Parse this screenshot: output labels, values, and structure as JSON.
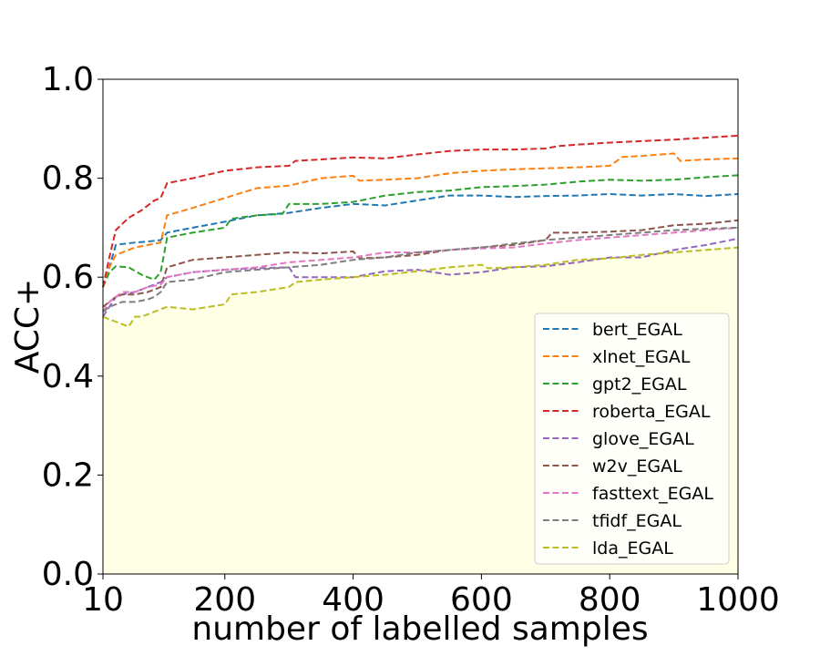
{
  "chart_data": {
    "type": "line",
    "title": "",
    "xlabel": "number of labelled samples",
    "ylabel": "ACC+",
    "xlim": [
      10,
      1000
    ],
    "ylim": [
      0.0,
      1.0
    ],
    "xticks": [
      10,
      200,
      400,
      600,
      800,
      1000
    ],
    "yticks": [
      0.0,
      0.2,
      0.4,
      0.6,
      0.8,
      1.0
    ],
    "xtick_labels": [
      "10",
      "200",
      "400",
      "600",
      "800",
      "1000"
    ],
    "ytick_labels": [
      "0.0",
      "0.2",
      "0.4",
      "0.6",
      "0.8",
      "1.0"
    ],
    "grid": false,
    "legend_position": "lower-right",
    "fill_under_series": "lda_EGAL",
    "fill_color": "#ffffe6",
    "series": [
      {
        "name": "bert_EGAL",
        "color": "#1f77b4",
        "x": [
          10,
          20,
          30,
          40,
          60,
          80,
          100,
          110,
          150,
          200,
          250,
          300,
          350,
          400,
          450,
          500,
          550,
          600,
          650,
          700,
          750,
          800,
          850,
          900,
          950,
          1000
        ],
        "y": [
          0.58,
          0.62,
          0.665,
          0.667,
          0.67,
          0.672,
          0.675,
          0.69,
          0.7,
          0.712,
          0.725,
          0.73,
          0.74,
          0.748,
          0.745,
          0.755,
          0.765,
          0.765,
          0.762,
          0.764,
          0.765,
          0.768,
          0.765,
          0.768,
          0.764,
          0.768
        ]
      },
      {
        "name": "xlnet_EGAL",
        "color": "#ff7f0e",
        "x": [
          10,
          20,
          30,
          40,
          60,
          80,
          100,
          110,
          150,
          200,
          250,
          300,
          350,
          400,
          410,
          450,
          500,
          550,
          600,
          650,
          700,
          750,
          800,
          820,
          850,
          900,
          910,
          950,
          1000
        ],
        "y": [
          0.58,
          0.62,
          0.645,
          0.65,
          0.66,
          0.665,
          0.67,
          0.725,
          0.74,
          0.76,
          0.78,
          0.785,
          0.8,
          0.805,
          0.795,
          0.797,
          0.8,
          0.81,
          0.815,
          0.818,
          0.82,
          0.822,
          0.825,
          0.843,
          0.845,
          0.85,
          0.835,
          0.838,
          0.84
        ]
      },
      {
        "name": "gpt2_EGAL",
        "color": "#2ca02c",
        "x": [
          10,
          20,
          30,
          50,
          70,
          90,
          100,
          110,
          150,
          200,
          210,
          250,
          290,
          300,
          350,
          400,
          450,
          500,
          550,
          600,
          650,
          700,
          750,
          800,
          850,
          900,
          950,
          1000
        ],
        "y": [
          0.58,
          0.61,
          0.622,
          0.62,
          0.605,
          0.595,
          0.61,
          0.68,
          0.69,
          0.7,
          0.718,
          0.725,
          0.728,
          0.748,
          0.748,
          0.752,
          0.765,
          0.772,
          0.775,
          0.782,
          0.784,
          0.787,
          0.793,
          0.797,
          0.795,
          0.797,
          0.802,
          0.806
        ]
      },
      {
        "name": "roberta_EGAL",
        "color": "#d62728",
        "x": [
          10,
          20,
          30,
          50,
          70,
          90,
          100,
          110,
          150,
          200,
          250,
          300,
          310,
          350,
          400,
          450,
          500,
          550,
          600,
          650,
          700,
          720,
          750,
          800,
          850,
          900,
          950,
          1000
        ],
        "y": [
          0.58,
          0.64,
          0.695,
          0.72,
          0.735,
          0.755,
          0.76,
          0.79,
          0.8,
          0.815,
          0.822,
          0.825,
          0.835,
          0.838,
          0.842,
          0.84,
          0.848,
          0.855,
          0.858,
          0.858,
          0.86,
          0.865,
          0.868,
          0.872,
          0.875,
          0.878,
          0.882,
          0.886
        ]
      },
      {
        "name": "glove_EGAL",
        "color": "#9467bd",
        "x": [
          10,
          20,
          30,
          40,
          60,
          80,
          100,
          110,
          150,
          200,
          250,
          300,
          310,
          350,
          400,
          450,
          500,
          550,
          600,
          650,
          700,
          750,
          800,
          850,
          900,
          950,
          1000
        ],
        "y": [
          0.52,
          0.54,
          0.56,
          0.565,
          0.57,
          0.58,
          0.59,
          0.6,
          0.61,
          0.615,
          0.618,
          0.62,
          0.6,
          0.6,
          0.6,
          0.612,
          0.615,
          0.605,
          0.61,
          0.62,
          0.622,
          0.63,
          0.64,
          0.64,
          0.655,
          0.665,
          0.678
        ]
      },
      {
        "name": "w2v_EGAL",
        "color": "#8c564b",
        "x": [
          10,
          20,
          30,
          40,
          60,
          80,
          100,
          110,
          150,
          200,
          250,
          300,
          350,
          400,
          410,
          450,
          500,
          550,
          600,
          650,
          700,
          710,
          750,
          800,
          850,
          900,
          950,
          1000
        ],
        "y": [
          0.54,
          0.55,
          0.56,
          0.565,
          0.565,
          0.57,
          0.58,
          0.62,
          0.635,
          0.64,
          0.645,
          0.65,
          0.648,
          0.652,
          0.638,
          0.64,
          0.645,
          0.655,
          0.66,
          0.665,
          0.675,
          0.69,
          0.69,
          0.692,
          0.695,
          0.705,
          0.708,
          0.715
        ]
      },
      {
        "name": "fasttext_EGAL",
        "color": "#e377c2",
        "x": [
          10,
          20,
          30,
          40,
          60,
          80,
          100,
          110,
          150,
          200,
          250,
          300,
          350,
          400,
          450,
          500,
          550,
          600,
          650,
          700,
          750,
          800,
          850,
          900,
          950,
          1000
        ],
        "y": [
          0.53,
          0.55,
          0.56,
          0.57,
          0.57,
          0.58,
          0.585,
          0.6,
          0.61,
          0.615,
          0.62,
          0.63,
          0.635,
          0.64,
          0.65,
          0.65,
          0.655,
          0.658,
          0.66,
          0.668,
          0.675,
          0.68,
          0.685,
          0.69,
          0.695,
          0.7
        ]
      },
      {
        "name": "tfidf_EGAL",
        "color": "#7f7f7f",
        "x": [
          10,
          20,
          30,
          40,
          60,
          80,
          90,
          100,
          110,
          150,
          200,
          250,
          300,
          350,
          400,
          450,
          500,
          550,
          600,
          650,
          700,
          750,
          800,
          850,
          900,
          950,
          1000
        ],
        "y": [
          0.53,
          0.54,
          0.545,
          0.55,
          0.55,
          0.555,
          0.56,
          0.57,
          0.59,
          0.595,
          0.61,
          0.615,
          0.62,
          0.625,
          0.635,
          0.64,
          0.65,
          0.655,
          0.66,
          0.668,
          0.675,
          0.68,
          0.685,
          0.69,
          0.695,
          0.698,
          0.7
        ]
      },
      {
        "name": "lda_EGAL",
        "color": "#bcbd22",
        "x": [
          10,
          20,
          30,
          40,
          50,
          60,
          70,
          80,
          90,
          100,
          110,
          150,
          200,
          210,
          250,
          300,
          310,
          350,
          400,
          450,
          500,
          550,
          600,
          610,
          650,
          700,
          750,
          800,
          850,
          900,
          950,
          1000
        ],
        "y": [
          0.52,
          0.515,
          0.51,
          0.505,
          0.5,
          0.52,
          0.52,
          0.525,
          0.53,
          0.535,
          0.54,
          0.535,
          0.545,
          0.565,
          0.57,
          0.58,
          0.59,
          0.595,
          0.6,
          0.605,
          0.612,
          0.62,
          0.625,
          0.618,
          0.62,
          0.625,
          0.635,
          0.638,
          0.645,
          0.65,
          0.655,
          0.66
        ]
      }
    ]
  }
}
